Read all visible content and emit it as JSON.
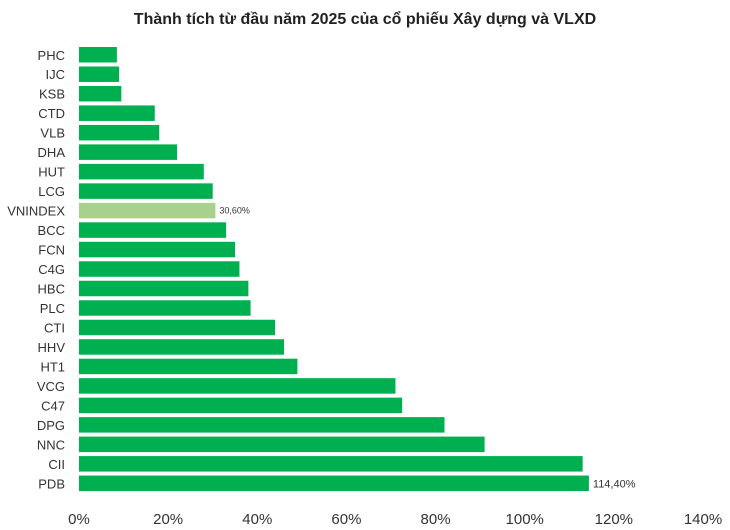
{
  "chart_data": {
    "type": "bar",
    "orientation": "horizontal",
    "title": "Thành tích từ đầu năm 2025 của cổ phiếu Xây dựng và VLXD",
    "xlabel": "",
    "ylabel": "",
    "xlim": [
      0,
      140
    ],
    "x_ticks": [
      "0%",
      "20%",
      "40%",
      "60%",
      "80%",
      "100%",
      "120%",
      "140%"
    ],
    "grid": false,
    "legend": "none",
    "colors": {
      "bar": "#00b050",
      "highlight": "#a9d18e"
    },
    "categories": [
      "PHC",
      "IJC",
      "KSB",
      "CTD",
      "VLB",
      "DHA",
      "HUT",
      "LCG",
      "VNINDEX",
      "BCC",
      "FCN",
      "C4G",
      "HBC",
      "PLC",
      "CTI",
      "HHV",
      "HT1",
      "VCG",
      "C47",
      "DPG",
      "NNC",
      "CII",
      "PDB"
    ],
    "values": [
      8.5,
      9,
      9.5,
      17,
      18,
      22,
      28,
      30,
      30.6,
      33,
      35,
      36,
      38,
      38.5,
      44,
      46,
      49,
      71,
      72.5,
      82,
      91,
      113,
      114.4
    ],
    "highlight": "VNINDEX",
    "data_labels": [
      {
        "category": "VNINDEX",
        "text": "30,60%"
      },
      {
        "category": "PDB",
        "text": "114,40%"
      }
    ]
  }
}
